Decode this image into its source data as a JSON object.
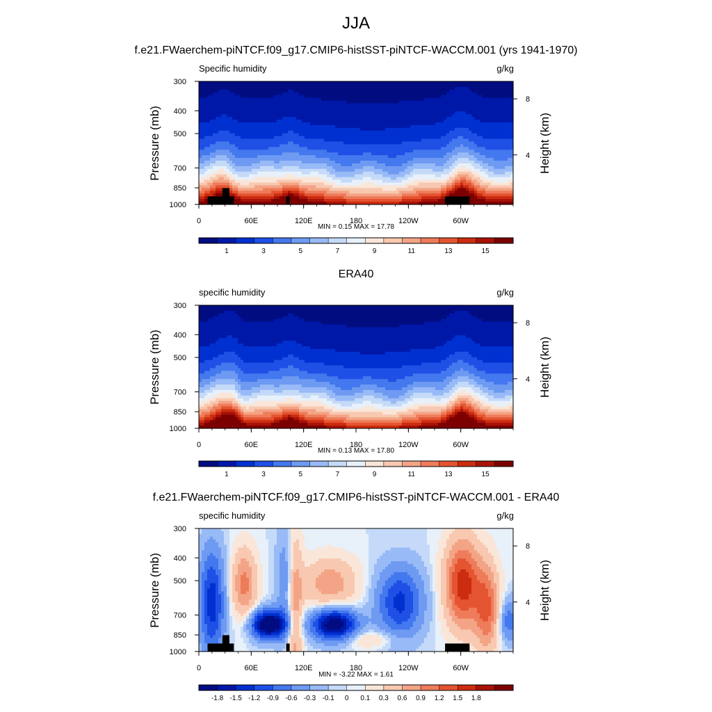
{
  "title": "JJA",
  "panels": [
    {
      "title": "f.e21.FWaerchem-piNTCF.f09_g17.CMIP6-histSST-piNTCF-WACCM.001 (yrs 1941-1970)",
      "left_label": "Specific humidity",
      "right_label": "g/kg",
      "minmax": "MIN =   0.15  MAX =   17.78",
      "kind": "clim",
      "masked": true
    },
    {
      "title": "ERA40",
      "left_label": "specific humidity",
      "right_label": "g/kg",
      "minmax": "MIN =   0.13  MAX =   17.80",
      "kind": "clim",
      "masked": false
    },
    {
      "title": "f.e21.FWaerchem-piNTCF.f09_g17.CMIP6-histSST-piNTCF-WACCM.001 - ERA40",
      "left_label": "specific humidity",
      "right_label": "g/kg",
      "minmax": "MIN =  -3.22  MAX =   1.61",
      "kind": "diff",
      "masked": true
    }
  ],
  "axes": {
    "ylabel": "Pressure (mb)",
    "y2label": "Height (km)",
    "pressure_ticks": [
      300,
      400,
      500,
      700,
      850,
      1000
    ],
    "height_ticks": [
      8,
      4
    ],
    "x_ticks": [
      "0",
      "60E",
      "120E",
      "180",
      "120W",
      "60W"
    ]
  },
  "chart_data": [
    {
      "type": "heatmap",
      "title": "f.e21.FWaerchem-piNTCF.f09_g17.CMIP6-histSST-piNTCF-WACCM.001 (yrs 1941-1970)",
      "subtitle": "Specific humidity",
      "units": "g/kg",
      "xlabel": "",
      "ylabel": "Pressure (mb)",
      "y2label": "Height (km)",
      "x_range_deg": [
        0,
        360
      ],
      "y_range_mb": [
        1000,
        300
      ],
      "y_scale": "log",
      "min": 0.15,
      "max": 17.78,
      "levels": [
        0,
        1,
        2,
        3,
        4,
        5,
        6,
        7,
        8,
        9,
        10,
        11,
        12,
        13,
        14,
        15,
        16
      ],
      "colorbar_labels": [
        "1",
        "3",
        "5",
        "7",
        "9",
        "11",
        "13",
        "15"
      ]
    },
    {
      "type": "heatmap",
      "title": "ERA40",
      "subtitle": "specific humidity",
      "units": "g/kg",
      "xlabel": "",
      "ylabel": "Pressure (mb)",
      "y2label": "Height (km)",
      "x_range_deg": [
        0,
        360
      ],
      "y_range_mb": [
        1000,
        300
      ],
      "y_scale": "log",
      "min": 0.13,
      "max": 17.8,
      "levels": [
        0,
        1,
        2,
        3,
        4,
        5,
        6,
        7,
        8,
        9,
        10,
        11,
        12,
        13,
        14,
        15,
        16
      ],
      "colorbar_labels": [
        "1",
        "3",
        "5",
        "7",
        "9",
        "11",
        "13",
        "15"
      ]
    },
    {
      "type": "heatmap",
      "title": "f.e21.FWaerchem-piNTCF.f09_g17.CMIP6-histSST-piNTCF-WACCM.001 - ERA40",
      "subtitle": "specific humidity",
      "units": "g/kg",
      "xlabel": "",
      "ylabel": "Pressure (mb)",
      "y2label": "Height (km)",
      "x_range_deg": [
        0,
        360
      ],
      "y_range_mb": [
        1000,
        300
      ],
      "y_scale": "log",
      "min": -3.22,
      "max": 1.61,
      "levels": [
        -1.8,
        -1.5,
        -1.2,
        -0.9,
        -0.6,
        -0.3,
        -0.1,
        0,
        0.1,
        0.3,
        0.6,
        0.9,
        1.2,
        1.5,
        1.8
      ],
      "colorbar_labels": [
        "-1.8",
        "-1.5",
        "-1.2",
        "-0.9",
        "-0.6",
        "-0.3",
        "-0.1",
        "0",
        "0.1",
        "0.3",
        "0.6",
        "0.9",
        "1.2",
        "1.5",
        "1.8"
      ]
    }
  ],
  "colors": {
    "scale": [
      "#000c80",
      "#0018a8",
      "#0030d0",
      "#1e50e6",
      "#4478ee",
      "#6e9af2",
      "#98baf6",
      "#c4daf8",
      "#e8f0fa",
      "#fae6d8",
      "#f8c8b0",
      "#f4a486",
      "#ee7c5a",
      "#e45430",
      "#cc2c10",
      "#a81208",
      "#7c0000"
    ]
  }
}
